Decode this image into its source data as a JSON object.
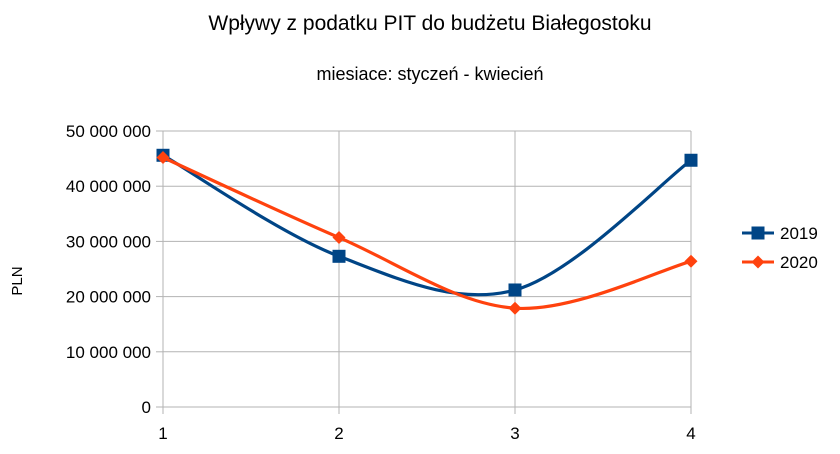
{
  "chart_data": {
    "type": "line",
    "title": "Wpływy z podatku PIT do budżetu Białegostoku",
    "subtitle": "miesiace: styczeń - kwiecień",
    "xlabel": "",
    "ylabel": "PLN",
    "x": [
      1,
      2,
      3,
      4
    ],
    "x_tick_labels": [
      "1",
      "2",
      "3",
      "4"
    ],
    "ylim": [
      0,
      50000000
    ],
    "y_ticks": [
      0,
      10000000,
      20000000,
      30000000,
      40000000,
      50000000
    ],
    "y_tick_labels": [
      "0",
      "10 000 000",
      "20 000 000",
      "30 000 000",
      "40 000 000",
      "50 000 000"
    ],
    "grid": true,
    "smoothed": true,
    "legend_position": "right",
    "series": [
      {
        "name": "2019",
        "color": "#004586",
        "marker": "square",
        "values": [
          45600000,
          27300000,
          21200000,
          44700000
        ]
      },
      {
        "name": "2020",
        "color": "#ff420e",
        "marker": "diamond",
        "values": [
          45200000,
          30700000,
          17900000,
          26400000
        ]
      }
    ]
  }
}
